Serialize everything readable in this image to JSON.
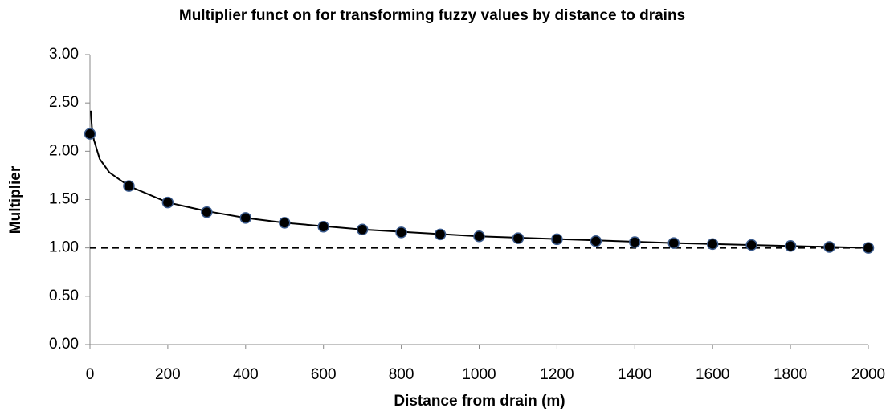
{
  "chart_data": {
    "type": "scatter",
    "title": "Multiplier funct on for transforming fuzzy values by distance to drains",
    "xlabel": "Distance from drain (m)",
    "ylabel": "Multiplier",
    "xlim": [
      0,
      2000
    ],
    "xticks": [
      0,
      200,
      400,
      600,
      800,
      1000,
      1200,
      1400,
      1600,
      1800,
      2000
    ],
    "ylim": [
      0,
      3
    ],
    "yticks": [
      {
        "value": 0,
        "label": "0.00"
      },
      {
        "value": 0.5,
        "label": "0.50"
      },
      {
        "value": 1,
        "label": "1.00"
      },
      {
        "value": 1.5,
        "label": "1.50"
      },
      {
        "value": 2,
        "label": "2.00"
      },
      {
        "value": 2.5,
        "label": "2.50"
      },
      {
        "value": 3,
        "label": "3.00"
      }
    ],
    "grid": false,
    "series": [
      {
        "style": "dashed",
        "color": "#000000",
        "x": [
          0,
          2000
        ],
        "values": [
          1,
          1
        ]
      },
      {
        "style": "line",
        "color": "#000000",
        "x": [
          2,
          5,
          10,
          25,
          50,
          100,
          200,
          300,
          400,
          500,
          700,
          1000,
          1500,
          2000
        ],
        "values": [
          2.42,
          2.25,
          2.12,
          1.92,
          1.78,
          1.64,
          1.47,
          1.38,
          1.31,
          1.26,
          1.19,
          1.12,
          1.05,
          1.0
        ]
      },
      {
        "style": "points",
        "color": "#000000",
        "edge_color": "#3a5a8c",
        "x": [
          0,
          100,
          200,
          300,
          400,
          500,
          600,
          700,
          800,
          900,
          1000,
          1100,
          1200,
          1300,
          1400,
          1500,
          1600,
          1700,
          1800,
          1900,
          2000
        ],
        "values": [
          2.18,
          1.64,
          1.47,
          1.37,
          1.31,
          1.26,
          1.22,
          1.19,
          1.16,
          1.14,
          1.12,
          1.1,
          1.09,
          1.07,
          1.06,
          1.05,
          1.04,
          1.03,
          1.02,
          1.01,
          1.0
        ]
      }
    ]
  }
}
